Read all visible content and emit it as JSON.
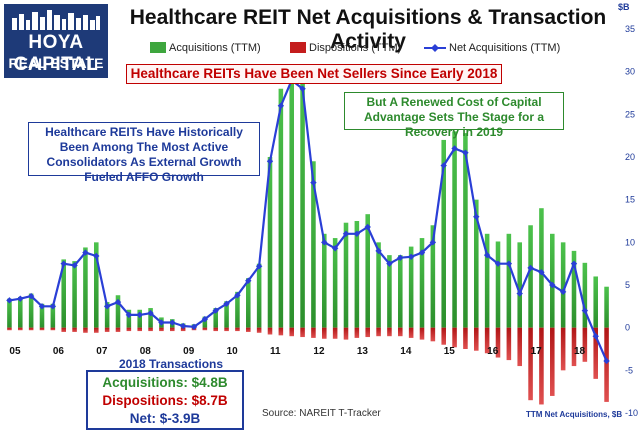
{
  "logo": {
    "line1": "HOYA CAPITAL",
    "line2": "REAL ESTATE"
  },
  "title": "Healthcare REIT Net Acquisitions & Transaction Activity",
  "subtitle": "Healthcare REITs Have Been Net Sellers Since Early 2018",
  "annotations": {
    "left": "Healthcare REITs Have Historically Been Among The Most Active Consolidators As External Growth Fueled AFFO Growth",
    "right": "But A Renewed Cost of Capital Advantage Sets The Stage for a Recovery in 2019"
  },
  "transactions": {
    "heading": "2018 Transactions",
    "acquisitions": "Acquisitions: $4.8B",
    "dispositions": "Dispositions: $8.7B",
    "net": "Net: $-3.9B"
  },
  "source": "Source: NAREIT T-Tracker",
  "unit_label": "TTM Net Acquisitions, $B",
  "unit_top": "$B",
  "colors": {
    "acquisitions": "#3ea63e",
    "dispositions": "#c41d1d",
    "net": "#2a3fd6",
    "accent_red": "#c00000",
    "accent_blue": "#1e3a9a",
    "accent_green": "#2d8a2d"
  },
  "chart_data": {
    "type": "bar",
    "title": "Healthcare REIT Net Acquisitions & Transaction Activity",
    "ylabel": "$B",
    "ylim": [
      -10,
      35
    ],
    "yticks": [
      -10,
      -5,
      0,
      5,
      10,
      15,
      20,
      25,
      30,
      35
    ],
    "year_labels": [
      "05",
      "06",
      "07",
      "08",
      "09",
      "10",
      "11",
      "12",
      "13",
      "14",
      "15",
      "16",
      "17",
      "18"
    ],
    "legend": {
      "placement": "top",
      "entries": [
        "Acquisitions (TTM)",
        "Dispositions (TTM)",
        "Net Acquisitions (TTM)"
      ]
    },
    "grid": false,
    "quarters_per_year": 4,
    "start_year": 2005,
    "series": [
      {
        "name": "Acquisitions (TTM)",
        "kind": "bar",
        "values": [
          3.4,
          3.6,
          4.0,
          2.8,
          2.8,
          8.0,
          7.8,
          9.4,
          10.0,
          3.0,
          3.8,
          2.1,
          2.1,
          2.3,
          1.2,
          1.0,
          0.5,
          0.4,
          1.3,
          2.3,
          3.1,
          4.2,
          5.8,
          7.5,
          20.0,
          28.0,
          30.0,
          29.0,
          19.5,
          11.0,
          10.5,
          12.3,
          12.5,
          13.3,
          10.0,
          8.5,
          8.5,
          9.5,
          10.5,
          12.0,
          22.0,
          23.0,
          22.8,
          15.0,
          11.0,
          10.1,
          11.0,
          10.0,
          12.0,
          14.0,
          11.0,
          10.0,
          9.0,
          7.6,
          6.0,
          4.8
        ]
      },
      {
        "name": "Dispositions (TTM)",
        "kind": "bar",
        "values": [
          -0.3,
          -0.3,
          -0.3,
          -0.3,
          -0.3,
          -0.5,
          -0.5,
          -0.6,
          -0.6,
          -0.5,
          -0.5,
          -0.4,
          -0.4,
          -0.4,
          -0.4,
          -0.4,
          -0.4,
          -0.3,
          -0.3,
          -0.4,
          -0.4,
          -0.4,
          -0.5,
          -0.6,
          -0.8,
          -0.9,
          -1.0,
          -1.1,
          -1.2,
          -1.3,
          -1.3,
          -1.4,
          -1.2,
          -1.1,
          -1.0,
          -1.0,
          -1.0,
          -1.2,
          -1.4,
          -1.6,
          -2.0,
          -2.3,
          -2.5,
          -2.7,
          -3.0,
          -3.5,
          -3.8,
          -4.5,
          -8.5,
          -9.0,
          -8.0,
          -5.0,
          -4.5,
          -4.0,
          -6.0,
          -8.7
        ]
      },
      {
        "name": "Net Acquisitions (TTM)",
        "kind": "line",
        "values": [
          3.2,
          3.4,
          3.7,
          2.5,
          2.5,
          7.5,
          7.3,
          8.8,
          8.4,
          2.5,
          3.0,
          1.5,
          1.5,
          1.7,
          0.6,
          0.6,
          0.2,
          0.1,
          1.0,
          2.0,
          2.8,
          3.8,
          5.5,
          7.2,
          19.5,
          26.0,
          29.0,
          28.0,
          17.0,
          10.0,
          9.3,
          11.0,
          11.0,
          11.8,
          9.0,
          7.5,
          8.2,
          8.3,
          8.8,
          10.0,
          19.0,
          21.0,
          20.5,
          13.0,
          8.5,
          7.5,
          7.5,
          4.0,
          7.0,
          6.5,
          5.0,
          4.2,
          7.5,
          2.0,
          -1.0,
          -3.9
        ]
      }
    ]
  }
}
